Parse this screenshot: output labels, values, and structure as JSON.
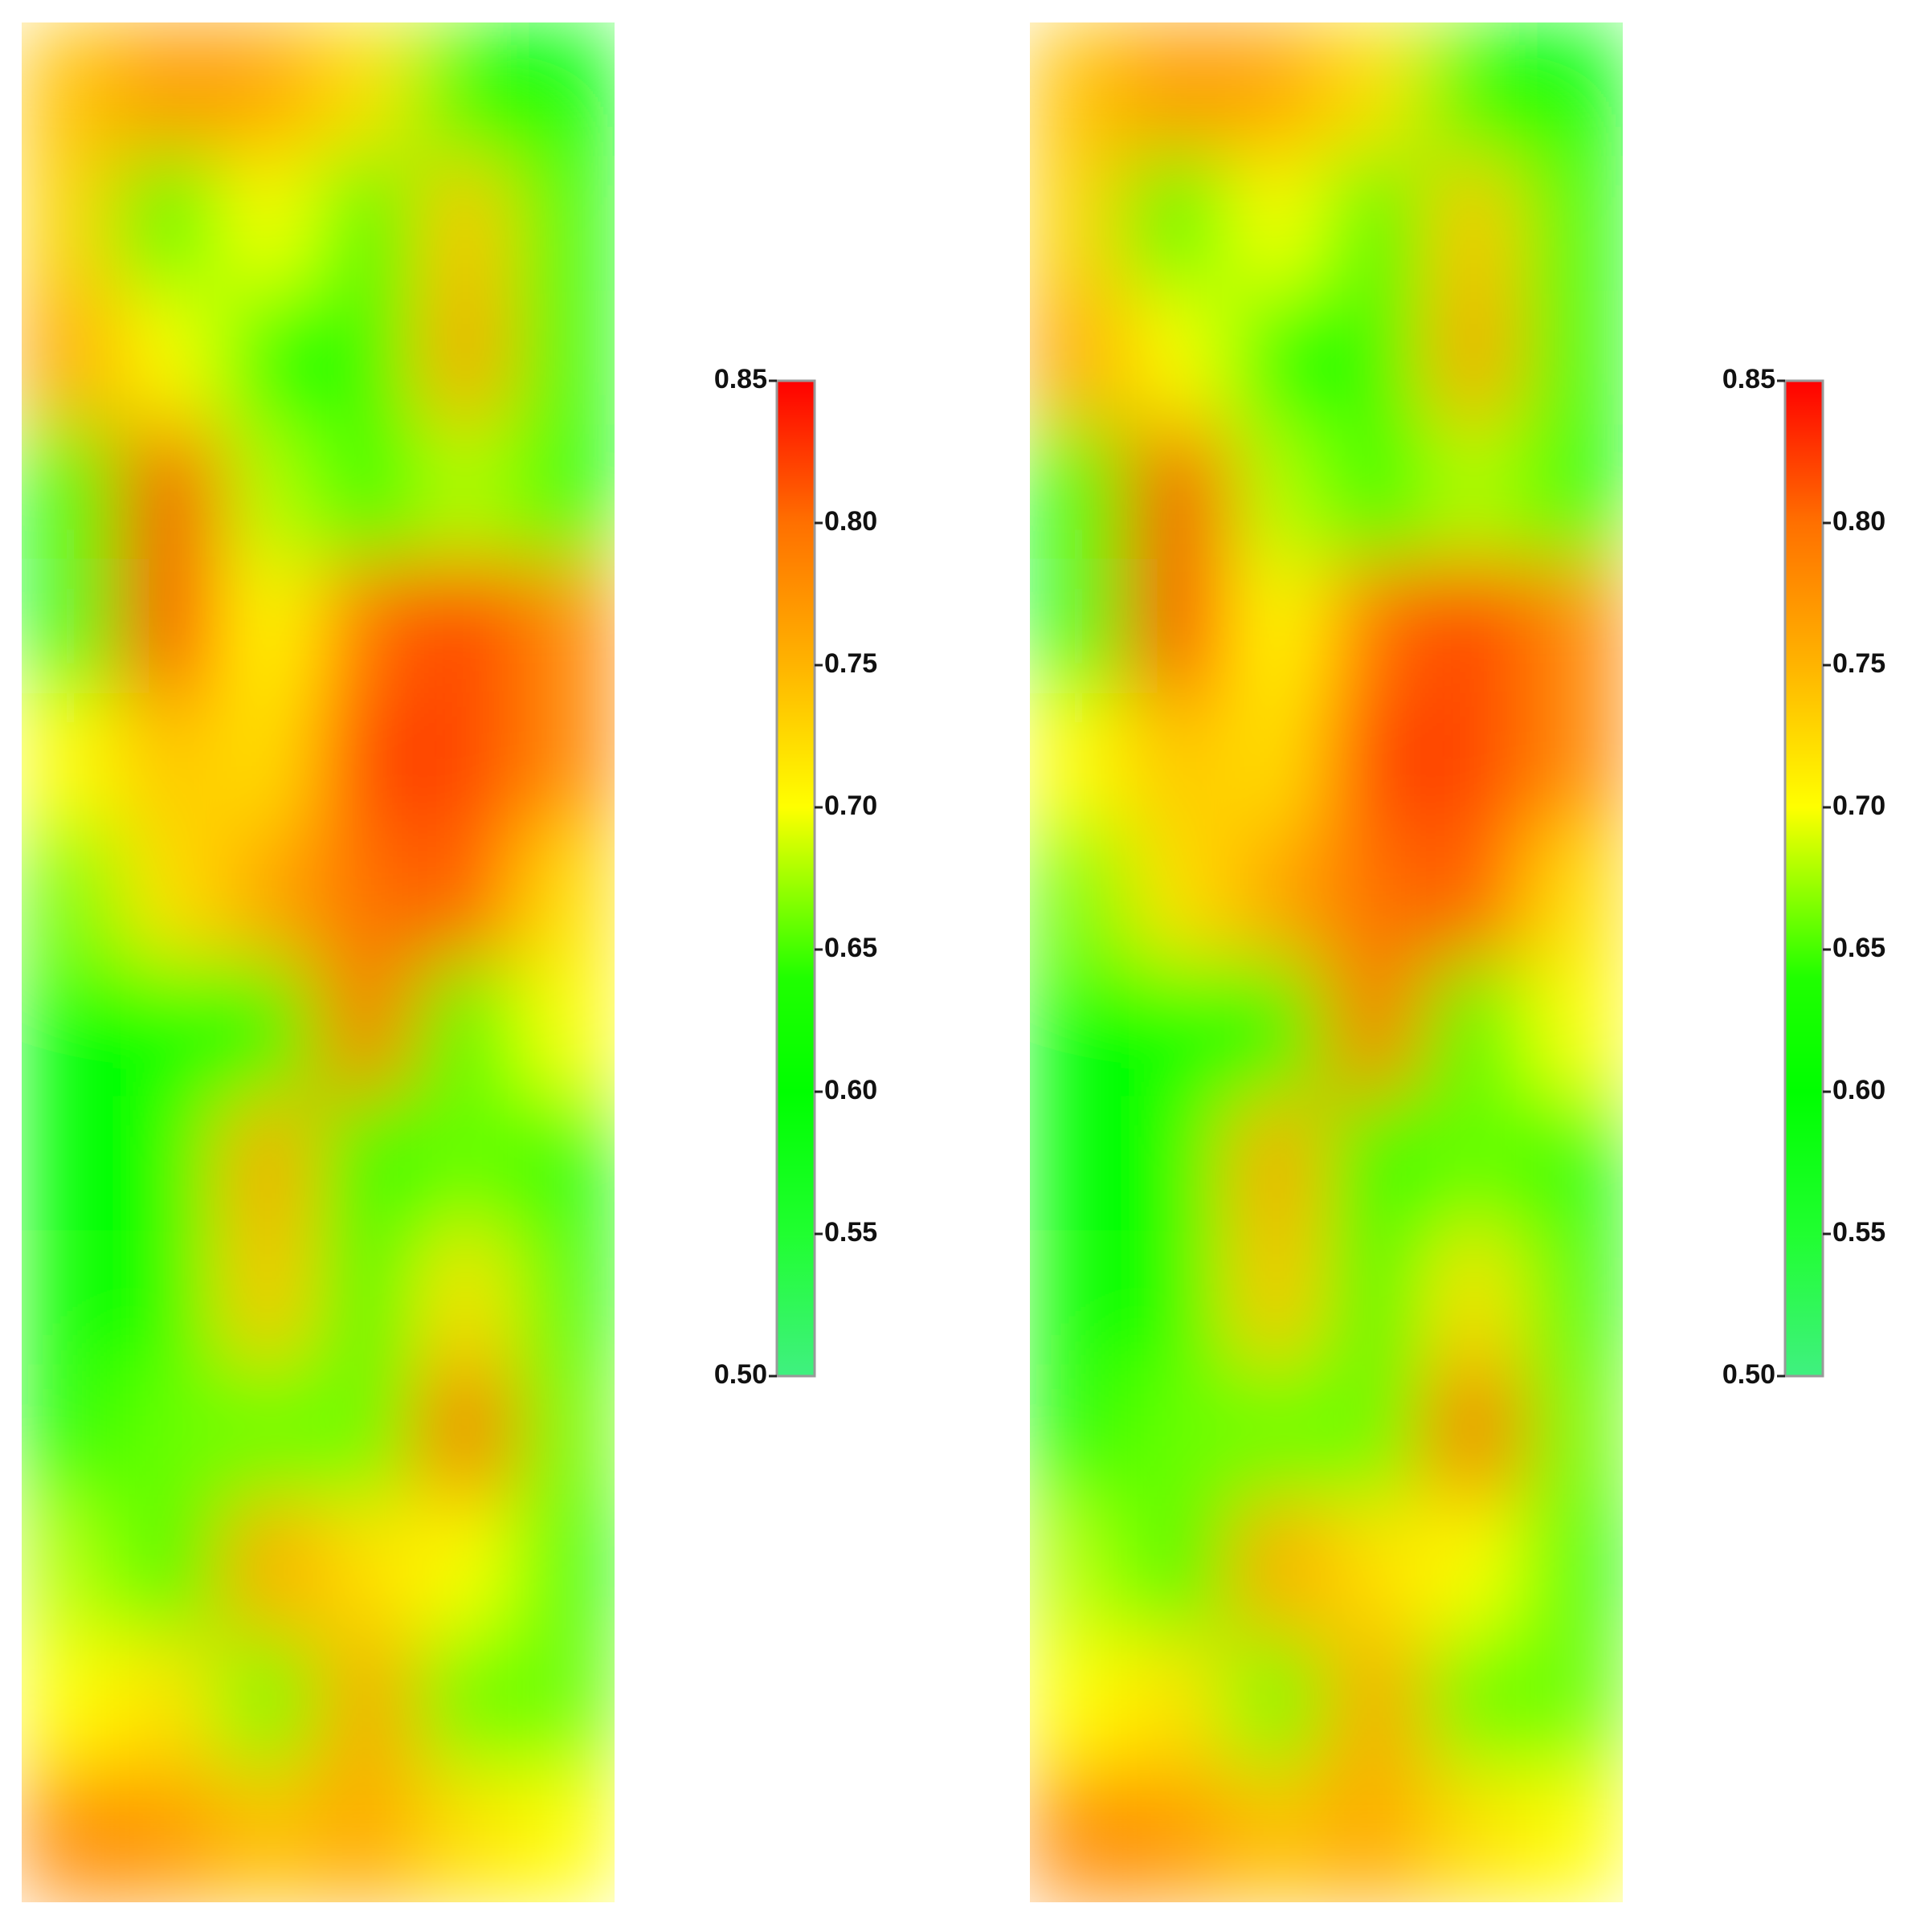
{
  "chart_data": [
    {
      "type": "heatmap",
      "z": [
        [
          0.74,
          0.77,
          0.76,
          0.72,
          0.62,
          0.6
        ],
        [
          0.73,
          0.62,
          0.7,
          0.62,
          0.74,
          0.6
        ],
        [
          0.76,
          0.7,
          0.62,
          0.64,
          0.76,
          0.62
        ],
        [
          0.6,
          0.83,
          0.68,
          0.62,
          0.68,
          0.62
        ],
        [
          0.58,
          0.84,
          0.7,
          0.8,
          0.82,
          0.78
        ],
        [
          0.7,
          0.74,
          0.72,
          0.82,
          0.82,
          0.78
        ],
        [
          0.66,
          0.72,
          0.76,
          0.8,
          0.81,
          0.72
        ],
        [
          0.6,
          0.62,
          0.6,
          0.8,
          0.64,
          0.7
        ],
        [
          0.6,
          0.6,
          0.76,
          0.62,
          0.66,
          0.64
        ],
        [
          0.62,
          0.62,
          0.74,
          0.6,
          0.72,
          0.64
        ],
        [
          0.63,
          0.66,
          0.66,
          0.66,
          0.8,
          0.66
        ],
        [
          0.68,
          0.64,
          0.76,
          0.72,
          0.7,
          0.64
        ],
        [
          0.7,
          0.72,
          0.66,
          0.76,
          0.66,
          0.66
        ],
        [
          0.78,
          0.77,
          0.74,
          0.76,
          0.72,
          0.7
        ]
      ],
      "zlim": [
        0.5,
        0.85
      ],
      "zticks": [
        {
          "value": 0.5,
          "label": "0.50"
        },
        {
          "value": 0.55,
          "label": "0.55"
        },
        {
          "value": 0.6,
          "label": "0.60"
        },
        {
          "value": 0.65,
          "label": "0.65"
        },
        {
          "value": 0.7,
          "label": "0.70"
        },
        {
          "value": 0.75,
          "label": "0.75"
        },
        {
          "value": 0.8,
          "label": "0.80"
        },
        {
          "value": 0.85,
          "label": "0.85"
        }
      ],
      "colorscale": [
        [
          0.5,
          "#40f080"
        ],
        [
          0.55,
          "#20ff30"
        ],
        [
          0.6,
          "#00ff00"
        ],
        [
          0.64,
          "#20ff00"
        ],
        [
          0.7,
          "#ffff00"
        ],
        [
          0.75,
          "#ffb400"
        ],
        [
          0.8,
          "#ff7000"
        ],
        [
          0.85,
          "#ff0000"
        ]
      ]
    },
    {
      "type": "heatmap",
      "z": [
        [
          0.74,
          0.77,
          0.76,
          0.72,
          0.62,
          0.6
        ],
        [
          0.73,
          0.62,
          0.7,
          0.62,
          0.74,
          0.6
        ],
        [
          0.76,
          0.7,
          0.62,
          0.64,
          0.76,
          0.62
        ],
        [
          0.6,
          0.83,
          0.68,
          0.62,
          0.68,
          0.62
        ],
        [
          0.58,
          0.84,
          0.7,
          0.8,
          0.82,
          0.78
        ],
        [
          0.7,
          0.74,
          0.72,
          0.82,
          0.82,
          0.78
        ],
        [
          0.66,
          0.72,
          0.76,
          0.8,
          0.81,
          0.72
        ],
        [
          0.6,
          0.62,
          0.6,
          0.8,
          0.64,
          0.7
        ],
        [
          0.6,
          0.6,
          0.76,
          0.62,
          0.66,
          0.64
        ],
        [
          0.62,
          0.62,
          0.74,
          0.6,
          0.72,
          0.64
        ],
        [
          0.63,
          0.66,
          0.66,
          0.66,
          0.8,
          0.66
        ],
        [
          0.68,
          0.64,
          0.76,
          0.72,
          0.7,
          0.64
        ],
        [
          0.7,
          0.72,
          0.66,
          0.76,
          0.66,
          0.66
        ],
        [
          0.78,
          0.77,
          0.74,
          0.76,
          0.72,
          0.7
        ]
      ],
      "zlim": [
        0.5,
        0.85
      ],
      "zticks": [
        {
          "value": 0.5,
          "label": "0.50"
        },
        {
          "value": 0.55,
          "label": "0.55"
        },
        {
          "value": 0.6,
          "label": "0.60"
        },
        {
          "value": 0.65,
          "label": "0.65"
        },
        {
          "value": 0.7,
          "label": "0.70"
        },
        {
          "value": 0.75,
          "label": "0.75"
        },
        {
          "value": 0.8,
          "label": "0.80"
        },
        {
          "value": 0.85,
          "label": "0.85"
        }
      ],
      "colorscale": [
        [
          0.5,
          "#40f080"
        ],
        [
          0.55,
          "#20ff30"
        ],
        [
          0.6,
          "#00ff00"
        ],
        [
          0.64,
          "#20ff00"
        ],
        [
          0.7,
          "#ffff00"
        ],
        [
          0.75,
          "#ffb400"
        ],
        [
          0.8,
          "#ff7000"
        ],
        [
          0.85,
          "#ff0000"
        ]
      ]
    }
  ]
}
